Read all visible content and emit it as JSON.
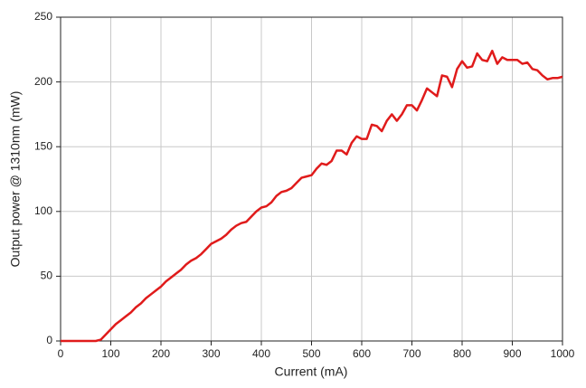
{
  "chart_data": {
    "type": "line",
    "x_label": "Current (mA)",
    "y_label": "Output power @ 1310nm (mW)",
    "x": [
      0,
      10,
      20,
      30,
      40,
      50,
      60,
      70,
      80,
      90,
      100,
      110,
      120,
      130,
      140,
      150,
      160,
      170,
      180,
      190,
      200,
      210,
      220,
      230,
      240,
      250,
      260,
      270,
      280,
      290,
      300,
      310,
      320,
      330,
      340,
      350,
      360,
      370,
      380,
      390,
      400,
      410,
      420,
      430,
      440,
      450,
      460,
      470,
      480,
      490,
      500,
      510,
      520,
      530,
      540,
      550,
      560,
      570,
      580,
      590,
      600,
      610,
      620,
      630,
      640,
      650,
      660,
      670,
      680,
      690,
      700,
      710,
      720,
      730,
      740,
      750,
      760,
      770,
      780,
      790,
      800,
      810,
      820,
      830,
      840,
      850,
      860,
      870,
      880,
      890,
      900,
      910,
      920,
      930,
      940,
      950,
      960,
      970,
      980,
      990,
      1000
    ],
    "series": [
      {
        "color": "#e01b1b",
        "values": [
          0,
          0,
          0,
          0,
          0,
          0,
          0,
          0,
          1,
          5,
          9,
          13,
          16,
          19,
          22,
          26,
          29,
          33,
          36,
          39,
          42,
          46,
          49,
          52,
          55,
          59,
          62,
          64,
          67,
          71,
          75,
          77,
          79,
          82,
          86,
          89,
          91,
          92,
          96,
          100,
          103,
          104,
          107,
          112,
          115,
          116,
          118,
          122,
          126,
          127,
          128,
          133,
          137,
          136,
          139,
          147,
          147,
          144,
          153,
          158,
          156,
          156,
          167,
          166,
          162,
          170,
          175,
          170,
          175,
          182,
          182,
          178,
          186,
          195,
          192,
          189,
          205,
          204,
          196,
          210,
          216,
          211,
          212,
          222,
          217,
          216,
          224,
          214,
          219,
          217,
          217,
          217,
          214,
          215,
          210,
          209,
          205,
          202,
          203,
          203,
          204
        ]
      }
    ],
    "xlim": [
      0,
      1000
    ],
    "xticks": [
      0,
      100,
      200,
      300,
      400,
      500,
      600,
      700,
      800,
      900,
      1000
    ],
    "ylim": [
      0,
      250
    ],
    "yticks": [
      0,
      50,
      100,
      150,
      200,
      250
    ],
    "grid": true
  }
}
